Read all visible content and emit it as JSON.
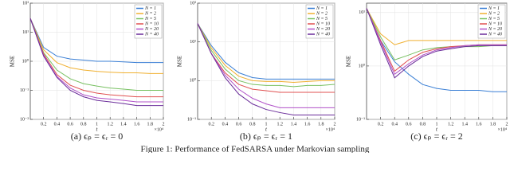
{
  "chart_data": [
    {
      "type": "line",
      "caption": "(a) ϵₚ = ϵᵣ = 0",
      "ylabel": "MSE",
      "xlabel": "t",
      "x_multiplier": "×10⁴",
      "x": [
        0,
        0.2,
        0.4,
        0.6,
        0.8,
        1,
        1.2,
        1.4,
        1.6,
        1.8,
        2
      ],
      "xlim": [
        0,
        2
      ],
      "xticks": [
        0.2,
        0.4,
        0.6,
        0.8,
        1,
        1.2,
        1.4,
        1.6,
        1.8,
        2
      ],
      "ylim": [
        0.01,
        100
      ],
      "log_y": true,
      "grid": true,
      "legend": "upper right",
      "yticks": [
        {
          "value": 0.01,
          "label": "10⁻²"
        },
        {
          "value": 0.1,
          "label": "10⁻¹"
        },
        {
          "value": 1,
          "label": "10⁰"
        },
        {
          "value": 10,
          "label": "10¹"
        },
        {
          "value": 100,
          "label": "10²"
        }
      ],
      "series": [
        {
          "name": "N = 1",
          "color": "#3a7fd5",
          "values": [
            30,
            3,
            1.5,
            1.2,
            1.1,
            1.0,
            1.0,
            0.95,
            0.9,
            0.9,
            0.9
          ]
        },
        {
          "name": "N = 2",
          "color": "#f0b030",
          "values": [
            30,
            2.5,
            0.9,
            0.6,
            0.5,
            0.45,
            0.42,
            0.4,
            0.4,
            0.38,
            0.38
          ]
        },
        {
          "name": "N = 5",
          "color": "#77c060",
          "values": [
            30,
            2,
            0.5,
            0.25,
            0.17,
            0.14,
            0.12,
            0.11,
            0.1,
            0.1,
            0.1
          ]
        },
        {
          "name": "N = 10",
          "color": "#e05050",
          "values": [
            30,
            1.8,
            0.35,
            0.15,
            0.1,
            0.08,
            0.07,
            0.065,
            0.06,
            0.06,
            0.06
          ]
        },
        {
          "name": "N = 20",
          "color": "#b050c8",
          "values": [
            30,
            1.6,
            0.3,
            0.12,
            0.07,
            0.055,
            0.05,
            0.045,
            0.04,
            0.04,
            0.04
          ]
        },
        {
          "name": "N = 40",
          "color": "#6a2c9a",
          "values": [
            30,
            1.5,
            0.28,
            0.1,
            0.06,
            0.045,
            0.04,
            0.035,
            0.03,
            0.03,
            0.03
          ]
        }
      ]
    },
    {
      "type": "line",
      "caption": "(b) ϵₚ = ϵᵣ = 1",
      "ylabel": "MSE",
      "xlabel": "t",
      "x_multiplier": "×10⁴",
      "x": [
        0,
        0.2,
        0.4,
        0.6,
        0.8,
        1,
        1.2,
        1.4,
        1.6,
        1.8,
        2
      ],
      "xlim": [
        0,
        2
      ],
      "xticks": [
        0.2,
        0.4,
        0.6,
        0.8,
        1,
        1.2,
        1.4,
        1.6,
        1.8,
        2
      ],
      "ylim": [
        0.1,
        100
      ],
      "log_y": true,
      "grid": true,
      "legend": "upper right",
      "yticks": [
        {
          "value": 0.1,
          "label": "10⁻¹"
        },
        {
          "value": 1,
          "label": "10⁰"
        },
        {
          "value": 10,
          "label": "10¹"
        },
        {
          "value": 100,
          "label": "10²"
        }
      ],
      "series": [
        {
          "name": "N = 1",
          "color": "#3a7fd5",
          "values": [
            30,
            8,
            3,
            1.6,
            1.2,
            1.1,
            1.1,
            1.1,
            1.1,
            1.1,
            1.1
          ]
        },
        {
          "name": "N = 2",
          "color": "#f0b030",
          "values": [
            30,
            7,
            2.5,
            1.3,
            1.0,
            0.95,
            0.95,
            0.9,
            0.95,
            1,
            1
          ]
        },
        {
          "name": "N = 5",
          "color": "#77c060",
          "values": [
            30,
            6,
            2,
            1.0,
            0.8,
            0.75,
            0.75,
            0.7,
            0.75,
            0.75,
            0.8
          ]
        },
        {
          "name": "N = 10",
          "color": "#e05050",
          "values": [
            30,
            5,
            1.6,
            0.8,
            0.6,
            0.55,
            0.5,
            0.5,
            0.5,
            0.5,
            0.5
          ]
        },
        {
          "name": "N = 20",
          "color": "#b050c8",
          "values": [
            30,
            5,
            1.4,
            0.6,
            0.35,
            0.25,
            0.2,
            0.2,
            0.2,
            0.2,
            0.2
          ]
        },
        {
          "name": "N = 40",
          "color": "#6a2c9a",
          "values": [
            30,
            5,
            1.2,
            0.45,
            0.25,
            0.18,
            0.15,
            0.13,
            0.13,
            0.13,
            0.13
          ]
        }
      ]
    },
    {
      "type": "line",
      "caption": "(c) ϵₚ = ϵᵣ = 2",
      "ylabel": "MSE",
      "xlabel": "t",
      "x_multiplier": "×10⁴",
      "x": [
        0,
        0.2,
        0.4,
        0.6,
        0.8,
        1,
        1.2,
        1.4,
        1.6,
        1.8,
        2
      ],
      "xlim": [
        0,
        2
      ],
      "xticks": [
        0.2,
        0.4,
        0.6,
        0.8,
        1,
        1.2,
        1.4,
        1.6,
        1.8,
        2
      ],
      "ylim": [
        0.1,
        15
      ],
      "log_y": true,
      "grid": true,
      "legend": "upper right",
      "yticks": [
        {
          "value": 0.1,
          "label": "10⁻¹"
        },
        {
          "value": 1,
          "label": "10⁰"
        },
        {
          "value": 10,
          "label": "10¹"
        }
      ],
      "series": [
        {
          "name": "N = 1",
          "color": "#3a7fd5",
          "values": [
            12,
            3,
            1.2,
            0.7,
            0.45,
            0.38,
            0.35,
            0.35,
            0.35,
            0.33,
            0.33
          ]
        },
        {
          "name": "N = 2",
          "color": "#f0b030",
          "values": [
            12,
            4,
            2.5,
            3,
            3,
            3,
            3,
            3,
            3,
            3,
            3
          ]
        },
        {
          "name": "N = 5",
          "color": "#77c060",
          "values": [
            12,
            3.5,
            1.3,
            1.6,
            2,
            2.2,
            2.3,
            2.3,
            2.3,
            2.4,
            2.4
          ]
        },
        {
          "name": "N = 10",
          "color": "#e05050",
          "values": [
            12,
            3,
            0.8,
            1.3,
            1.8,
            2.1,
            2.3,
            2.4,
            2.5,
            2.5,
            2.5
          ]
        },
        {
          "name": "N = 20",
          "color": "#b050c8",
          "values": [
            12,
            2.8,
            0.7,
            1.1,
            1.6,
            2,
            2.2,
            2.4,
            2.5,
            2.5,
            2.5
          ]
        },
        {
          "name": "N = 40",
          "color": "#6a2c9a",
          "values": [
            12,
            2.5,
            0.6,
            1,
            1.5,
            1.9,
            2.1,
            2.3,
            2.4,
            2.4,
            2.4
          ]
        }
      ]
    }
  ],
  "figure_caption": "Figure 1: Performance of FedSARSA under Markovian sampling"
}
